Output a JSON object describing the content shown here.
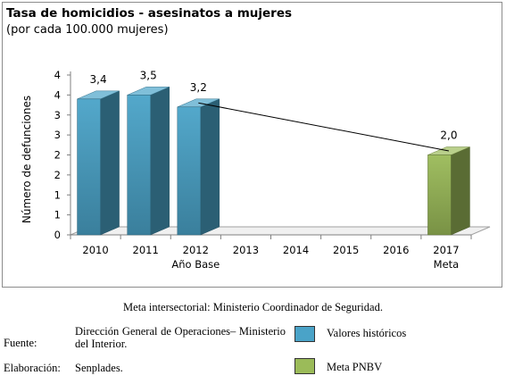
{
  "chart_data": {
    "type": "bar",
    "title": "Tasa de homicidios - asesinatos a mujeres",
    "subtitle": "(por cada 100.000 mujeres)",
    "ylabel": "Número de defunciones",
    "xlabel": "",
    "categories": [
      "2010",
      "2011",
      "2012",
      "2013",
      "2014",
      "2015",
      "2016",
      "2017"
    ],
    "category_sublabels": [
      "",
      "",
      "Año Base",
      "",
      "",
      "",
      "",
      "Meta"
    ],
    "series": [
      {
        "name": "Valores históricos",
        "color": "#4aa3c8",
        "values": [
          3.4,
          3.5,
          3.2,
          null,
          null,
          null,
          null,
          null
        ]
      },
      {
        "name": "Meta PNBV",
        "color": "#9bbb59",
        "values": [
          null,
          null,
          null,
          null,
          null,
          null,
          null,
          2.0
        ]
      }
    ],
    "data_labels": [
      "3,4",
      "3,5",
      "3,2",
      "",
      "",
      "",
      "",
      "2,0"
    ],
    "y_tick_labels": [
      "0",
      "1",
      "1",
      "2",
      "2",
      "3",
      "3",
      "4",
      "4"
    ],
    "ylim": [
      0,
      4
    ],
    "trend_line": {
      "from": "2012",
      "to": "2017"
    },
    "legend_position": "bottom-right",
    "grid": false
  },
  "caption": "Meta intersectorial: Ministerio Coordinador de Seguridad.",
  "footer": {
    "source_label": "Fuente:",
    "source_text": "Dirección General de Operaciones– Ministerio del Interior.",
    "elaboration_label": "Elaboración:",
    "elaboration_text": "Senplades.",
    "legend_hist_label": "Valores históricos",
    "legend_meta_label": "Meta PNBV",
    "legend_hist_color": "#4aa3c8",
    "legend_meta_color": "#9bbb59"
  }
}
